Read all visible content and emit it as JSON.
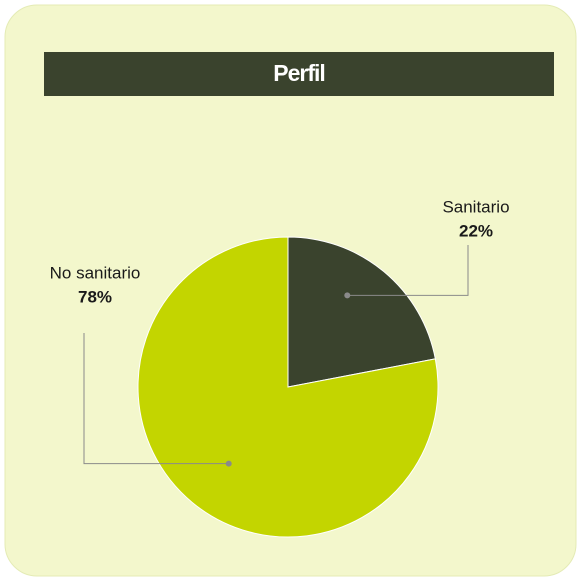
{
  "chart_data": {
    "type": "pie",
    "title": "Perfil",
    "categories": [
      "Sanitario",
      "No sanitario"
    ],
    "values": [
      22,
      78
    ],
    "value_labels": [
      "22%",
      "78%"
    ],
    "colors": [
      "#3a432d",
      "#c3d500"
    ]
  }
}
